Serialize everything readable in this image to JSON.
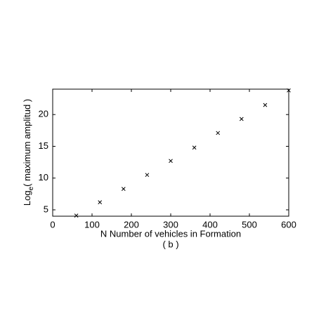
{
  "chart_data": {
    "type": "scatter",
    "xlabel": "N Number of vehicles in Formation",
    "ylabel": {
      "main": "Log",
      "sub": "e",
      "rest": "( maximum amplitud )"
    },
    "caption": "( b )",
    "x": [
      60,
      120,
      180,
      240,
      300,
      360,
      420,
      480,
      540,
      600
    ],
    "series": [
      {
        "color": "#000000",
        "marker": "x",
        "values": [
          4.1,
          6.2,
          8.3,
          10.5,
          12.7,
          14.8,
          17.1,
          19.3,
          21.5,
          23.8
        ]
      }
    ],
    "xlim": [
      0,
      600
    ],
    "xticks": [
      0,
      100,
      200,
      300,
      400,
      500,
      600
    ],
    "ylim": [
      4,
      24
    ],
    "yticks": [
      5,
      10,
      15,
      20
    ]
  }
}
